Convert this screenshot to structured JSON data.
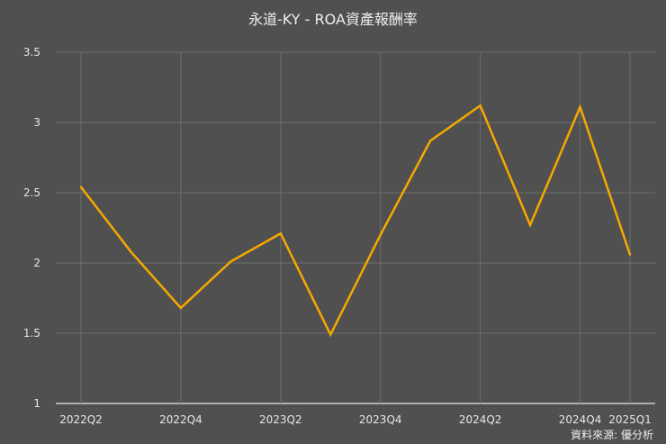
{
  "chart_data": {
    "type": "line",
    "title": "永道-KY - ROA資產報酬率",
    "source": "資料來源: 優分析",
    "x": [
      "2022Q2",
      "2022Q3",
      "2022Q4",
      "2023Q1",
      "2023Q2",
      "2023Q3",
      "2023Q4",
      "2024Q1",
      "2024Q2",
      "2024Q3",
      "2024Q4",
      "2025Q1"
    ],
    "x_tick_labels": [
      "2022Q2",
      "2022Q4",
      "2023Q2",
      "2023Q4",
      "2024Q2",
      "2024Q4",
      "2025Q1"
    ],
    "series": [
      {
        "values": [
          2.54,
          2.08,
          1.68,
          2.01,
          2.21,
          1.49,
          2.2,
          2.87,
          3.12,
          2.27,
          3.11,
          2.06
        ],
        "color": "#f5a800"
      }
    ],
    "y_ticks": [
      1,
      1.5,
      2,
      2.5,
      3,
      3.5
    ],
    "ylim": [
      1,
      3.5
    ],
    "grid": true,
    "legend": "none",
    "background": "#505050"
  }
}
